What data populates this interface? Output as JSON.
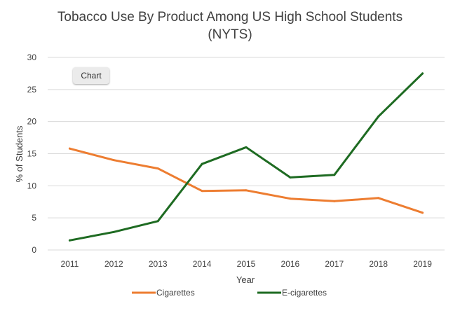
{
  "chart_data": {
    "type": "line",
    "title_lines": [
      "Tobacco Use By Product Among US High School Students",
      "(NYTS)"
    ],
    "xlabel": "Year",
    "ylabel": "% of Students",
    "x": [
      "2011",
      "2012",
      "2013",
      "2014",
      "2015",
      "2016",
      "2017",
      "2018",
      "2019"
    ],
    "yticks": [
      "0",
      "5",
      "10",
      "15",
      "20",
      "25",
      "30"
    ],
    "ylim": [
      0,
      30
    ],
    "grid": true,
    "legend_position": "bottom",
    "series": [
      {
        "name": "Cigarettes",
        "color": "#ed7d31",
        "values": [
          15.8,
          14.0,
          12.7,
          9.2,
          9.3,
          8.0,
          7.6,
          8.1,
          5.8
        ]
      },
      {
        "name": "E-cigarettes",
        "color": "#1e6b22",
        "values": [
          1.5,
          2.8,
          4.5,
          13.4,
          16.0,
          11.3,
          11.7,
          20.8,
          27.5
        ]
      }
    ]
  },
  "ui": {
    "chart_button_label": "Chart"
  }
}
